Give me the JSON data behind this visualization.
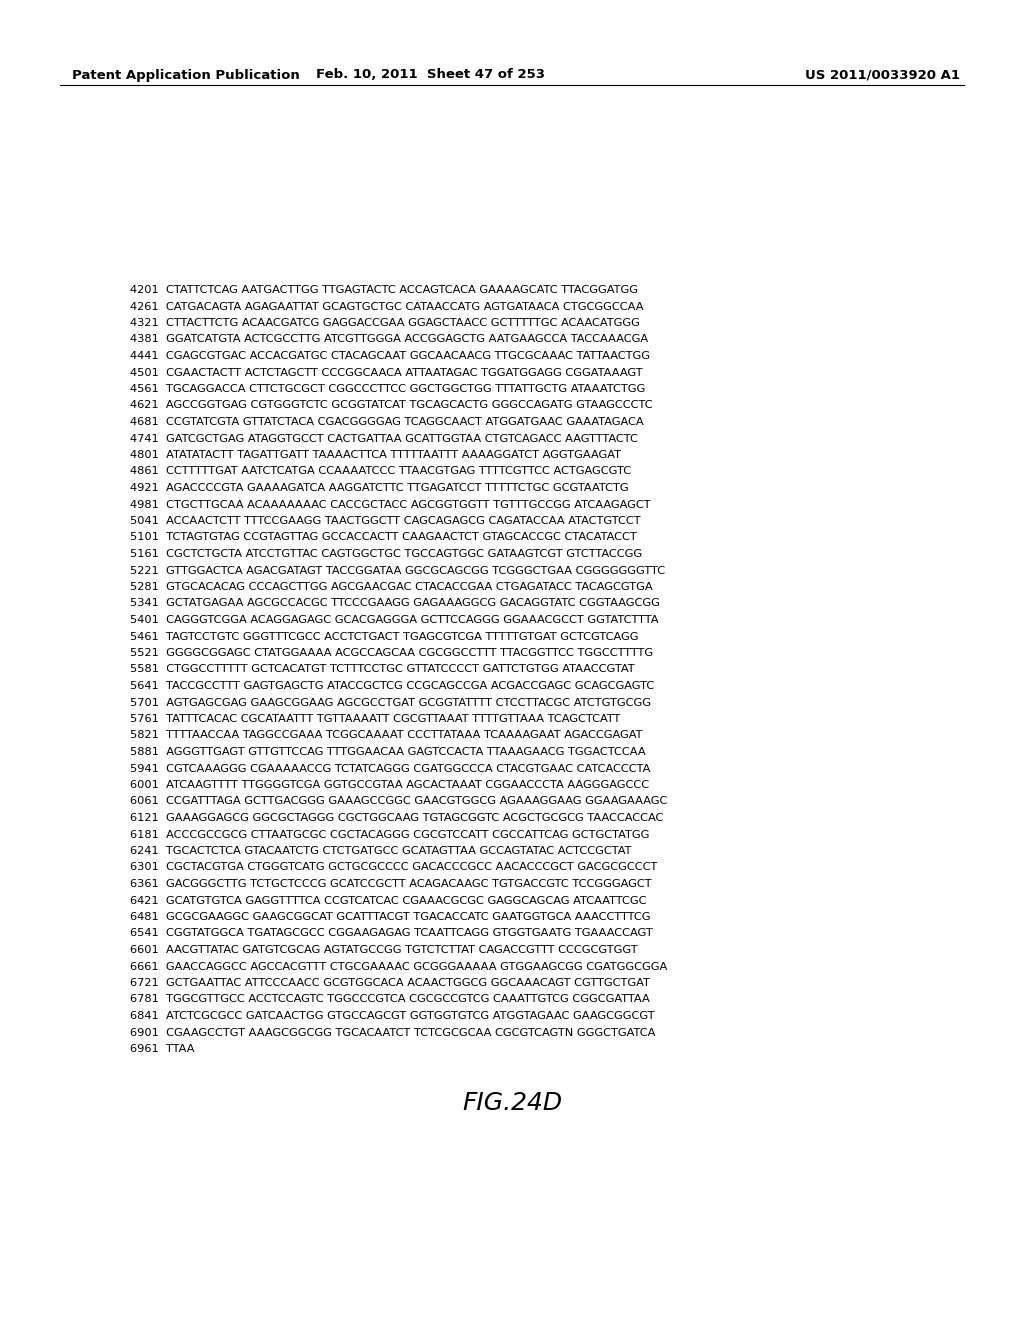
{
  "header_left": "Patent Application Publication",
  "header_middle": "Feb. 10, 2011  Sheet 47 of 253",
  "header_right": "US 2011/0033920 A1",
  "figure_label": "FIG.24D",
  "background_color": "#ffffff",
  "text_color": "#000000",
  "sequence_lines": [
    "4201  CTATTCTCAG AATGACTTGG TTGAGTACTC ACCAGTCACA GAAAAGCATC TTACGGATGG",
    "4261  CATGACAGTA AGAGAATTAT GCAGTGCTGC CATAACCATG AGTGATAACA CTGCGGCCAA",
    "4321  CTTACTTCTG ACAACGATCG GAGGACCGAA GGAGCTAACC GCTTTTTGC ACAACATGGG",
    "4381  GGATCATGTA ACTCGCCTTG ATCGTTGGGA ACCGGAGCTG AATGAAGCCA TACCAAACGA",
    "4441  CGAGCGTGAC ACCACGATGC CTACAGCAAT GGCAACAACG TTGCGCAAAC TATTAACTGG",
    "4501  CGAACTACTT ACTCTAGCTT CCCGGCAACA ATTAATAGAC TGGATGGAGG CGGATAAAGT",
    "4561  TGCAGGACCA CTTCTGCGCT CGGCCCTTCC GGCTGGCTGG TTTATTGCTG ATAAATCTGG",
    "4621  AGCCGGTGAG CGTGGGTCTC GCGGTATCAT TGCAGCACTG GGGCCAGATG GTAAGCCCTC",
    "4681  CCGTATCGTA GTTATCTACA CGACGGGGAG TCAGGCAACT ATGGATGAAC GAAATAGACA",
    "4741  GATCGCTGAG ATAGGTGCCT CACTGATTAA GCATTGGTAA CTGTCAGACC AAGTTTACTC",
    "4801  ATATATACTT TAGATTGATT TAAAACTTCA TTTTTAATTT AAAAGGATCT AGGTGAAGAT",
    "4861  CCTTTTTGAT AATCTCATGA CCAAAATCCC TTAACGTGAG TTTTCGTTCC ACTGAGCGTC",
    "4921  AGACCCCGTA GAAAAGATCA AAGGATCTTC TTGAGATCCT TTTTTCTGC GCGTAATCTG",
    "4981  CTGCTTGCAA ACAAAAAAAC CACCGCTACC AGCGGTGGTT TGTTTGCCGG ATCAAGAGCT",
    "5041  ACCAACTCTT TTTCCGAAGG TAACTGGCTT CAGCAGAGCG CAGATACCAA ATACTGTCCT",
    "5101  TCTAGTGTAG CCGTAGTTAG GCCACCACTT CAAGAACTCT GTAGCACCGC CTACATACCT",
    "5161  CGCTCTGCTA ATCCTGTTAC CAGTGGCTGC TGCCAGTGGC GATAAGTCGT GTCTTACCGG",
    "5221  GTTGGACTCA AGACGATAGT TACCGGATAA GGCGCAGCGG TCGGGCTGAA CGGGGGGGTTC",
    "5281  GTGCACACAG CCCAGCTTGG AGCGAACGAC CTACACCGAA CTGAGATACC TACAGCGTGA",
    "5341  GCTATGAGAA AGCGCCACGC TTCCCGAAGG GAGAAAGGCG GACAGGTATC CGGTAAGCGG",
    "5401  CAGGGTCGGA ACAGGAGAGC GCACGAGGGA GCTTCCAGGG GGAAACGCCT GGTATCTTTA",
    "5461  TAGTCCTGTC GGGTTTCGCC ACCTCTGACT TGAGCGTCGA TTTTTGTGAT GCTCGTCAGG",
    "5521  GGGGCGGAGC CTATGGAAAA ACGCCAGCAA CGCGGCCTTT TTACGGTTCC TGGCCTTTTG",
    "5581  CTGGCCTTTTT GCTCACATGT TCTTTCCTGC GTTATCCCCT GATTCTGTGG ATAACCGTAT",
    "5641  TACCGCCTTT GAGTGAGCTG ATACCGCTCG CCGCAGCCGA ACGACCGAGC GCAGCGAGTC",
    "5701  AGTGAGCGAG GAAGCGGAAG AGCGCCTGAT GCGGTATTTT CTCCTTACGC ATCTGTGCGG",
    "5761  TATTTCACAC CGCATAATTT TGTTAAAATT CGCGTTAAAT TTTTGTTAAA TCAGCTCATT",
    "5821  TTTTAACCAA TAGGCCGAAA TCGGCAAAAT CCCTTATAAA TCAAAAGAAT AGACCGAGAT",
    "5881  AGGGTTGAGT GTTGTTCCAG TTTGGAACAA GAGTCCACTA TTAAAGAACG TGGACTCCAA",
    "5941  CGTCAAAGGG CGAAAAACCG TCTATCAGGG CGATGGCCCA CTACGTGAAC CATCACCCTA",
    "6001  ATCAAGTTTT TTGGGGTCGA GGTGCCGTAA AGCACTAAAT CGGAACCCTA AAGGGAGCCC",
    "6061  CCGATTTAGA GCTTGACGGG GAAAGCCGGC GAACGTGGCG AGAAAGGAAG GGAAGAAAGC",
    "6121  GAAAGGAGCG GGCGCTAGGG CGCTGGCAAG TGTAGCGGTC ACGCTGCGCG TAACCACCAC",
    "6181  ACCCGCCGCG CTTAATGCGC CGCTACAGGG CGCGTCCATT CGCCATTCAG GCTGCTATGG",
    "6241  TGCACTCTCA GTACAATCTG CTCTGATGCC GCATAGTTAA GCCAGTATAC ACTCCGCTAT",
    "6301  CGCTACGTGA CTGGGTCATG GCTGCGCCCC GACACCCGCC AACACCCGCT GACGCGCCCT",
    "6361  GACGGGCTTG TCTGCTCCCG GCATCCGCTT ACAGACAAGC TGTGACCGTC TCCGGGAGCT",
    "6421  GCATGTGTCA GAGGTTTTCA CCGTCATCAC CGAAACGCGC GAGGCAGCAG ATCAATTCGC",
    "6481  GCGCGAAGGC GAAGCGGCAT GCATTTACGT TGACACCATC GAATGGTGCA AAACCTTTCG",
    "6541  CGGTATGGCA TGATAGCGCC CGGAAGAGAG TCAATTCAGG GTGGTGAATG TGAAACCAGT",
    "6601  AACGTTATAC GATGTCGCAG AGTATGCCGG TGTCTCTTAT CAGACCGTTT CCCGCGTGGT",
    "6661  GAACCAGGCC AGCCACGTTT CTGCGAAAAC GCGGGAAAAA GTGGAAGCGG CGATGGCGGA",
    "6721  GCTGAATTAC ATTCCCAACC GCGTGGCACA ACAACTGGCG GGCAAACAGT CGTTGCTGAT",
    "6781  TGGCGTTGCC ACCTCCAGTC TGGCCCGTCA CGCGCCGTCG CAAATTGTCG CGGCGATTAA",
    "6841  ATCTCGCGCC GATCAACTGG GTGCCAGCGT GGTGGTGTCG ATGGTAGAAC GAAGCGGCGT",
    "6901  CGAAGCCTGT AAAGCGGCGG TGCACAATCT TCTCGCGCAA CGCGTCAGTN GGGCTGATCA",
    "6961  TTAA"
  ]
}
